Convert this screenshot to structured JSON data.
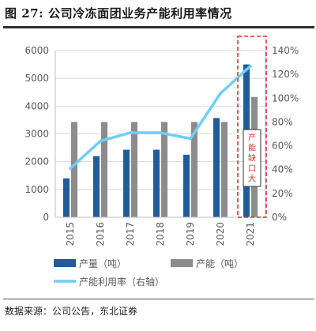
{
  "figure": {
    "number": "图 27:",
    "title": "公司冷冻面团业务产能利用率情况",
    "source": "数据来源：公司公告，东北证券"
  },
  "chart_data": {
    "type": "bar",
    "categories": [
      "2015",
      "2016",
      "2017",
      "2018",
      "2019",
      "2020",
      "2021"
    ],
    "series": [
      {
        "name": "产量（吨）",
        "kind": "bar",
        "axis": "left",
        "color": "#1f5c99",
        "values": [
          1400,
          2200,
          2430,
          2430,
          2250,
          3570,
          5500
        ]
      },
      {
        "name": "产能（吨）",
        "kind": "bar",
        "axis": "left",
        "color": "#8c8c8c",
        "values": [
          3430,
          3430,
          3430,
          3430,
          3430,
          3430,
          4330
        ]
      },
      {
        "name": "产能利用率（右轴）",
        "kind": "line",
        "axis": "right",
        "color": "#6ecff6",
        "values": [
          41,
          64,
          71,
          71,
          66,
          104,
          127
        ]
      }
    ],
    "y_left": {
      "min": 0,
      "max": 6000,
      "step": 1000,
      "ticks": [
        "0",
        "1000",
        "2000",
        "3000",
        "4000",
        "5000",
        "6000"
      ]
    },
    "y_right": {
      "min": 0,
      "max": 140,
      "step": 20,
      "ticks": [
        "0%",
        "20%",
        "40%",
        "60%",
        "80%",
        "100%",
        "120%",
        "140%"
      ]
    },
    "grid": true,
    "legend_position": "bottom",
    "annotation": {
      "text": "产能缺口大",
      "category": "2021",
      "highlight_color": "#e0322d"
    },
    "colors": {
      "axis": "#bfbfbf",
      "grid": "#d9d9d9",
      "tick_text": "#595959"
    }
  }
}
